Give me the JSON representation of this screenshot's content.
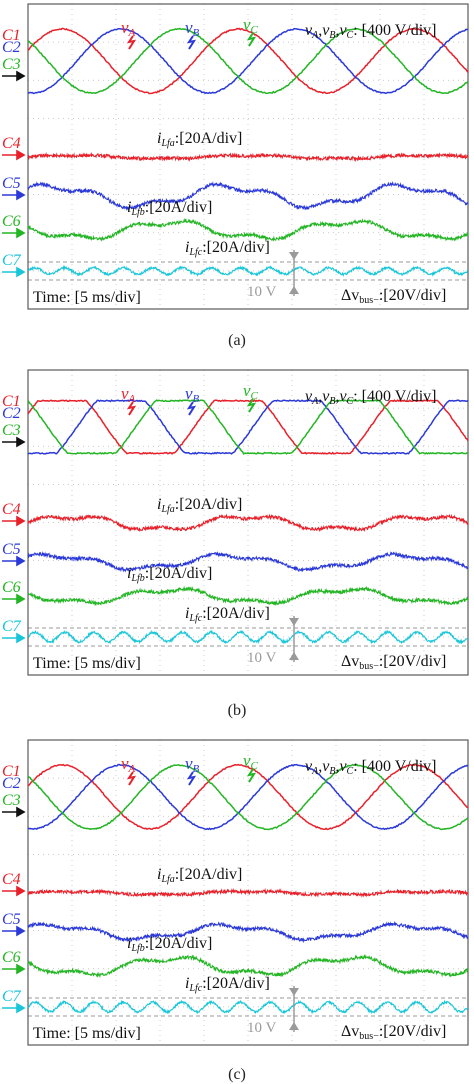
{
  "colors": {
    "C1": "#e8202a",
    "C2": "#2b39d8",
    "C3": "#23b524",
    "C4": "#e8202a",
    "C5": "#2b39d8",
    "C6": "#23b524",
    "C7": "#18c6d9",
    "annot": "#9a9a9a",
    "frame": "#5a5a5a"
  },
  "panels": [
    {
      "caption": "(a)",
      "channels": [
        "C1",
        "C2",
        "C3",
        "C4",
        "C5",
        "C6",
        "C7"
      ],
      "voltage_labels": [
        "v",
        "A",
        "v",
        "B",
        "v",
        "C"
      ],
      "voltage_scale": {
        "names": [
          "v",
          "A",
          ",",
          "v",
          "B",
          ",",
          "v",
          "C"
        ],
        "scale": ": [400 V/div]"
      },
      "current_labels": [
        {
          "sym": "i",
          "sub": "Lfa",
          "scale": ":[20A/div]"
        },
        {
          "sym": "i",
          "sub": "Lfb",
          "scale": ":[20A/div]"
        },
        {
          "sym": "i",
          "sub": "Lfc",
          "scale": ":[20A/div]"
        }
      ],
      "time_label": "Time: [5 ms/div]",
      "bus_label": {
        "pre": "Δv",
        "sub": "bus−",
        "scale": ":[20V/div]"
      },
      "v10_label": "10 V"
    },
    {
      "caption": "(b)",
      "channels": [
        "C1",
        "C2",
        "C3",
        "C4",
        "C5",
        "C6",
        "C7"
      ],
      "voltage_labels": [
        "v",
        "A",
        "v",
        "B",
        "v",
        "C"
      ],
      "voltage_scale": {
        "names": [
          "v",
          "A",
          ",",
          "v",
          "B",
          ",",
          "v",
          "C"
        ],
        "scale": ": [400 V/div]"
      },
      "current_labels": [
        {
          "sym": "i",
          "sub": "Lfa",
          "scale": ":[20A/div]"
        },
        {
          "sym": "i",
          "sub": "Lfb",
          "scale": ":[20A/div]"
        },
        {
          "sym": "i",
          "sub": "Lfc",
          "scale": ":[20A/div]"
        }
      ],
      "time_label": "Time: [5 ms/div]",
      "bus_label": {
        "pre": "Δv",
        "sub": "bus−",
        "scale": ":[20V/div]"
      },
      "v10_label": "10 V"
    },
    {
      "caption": "(c)",
      "channels": [
        "C1",
        "C2",
        "C3",
        "C4",
        "C5",
        "C6",
        "C7"
      ],
      "voltage_labels": [
        "v",
        "A",
        "v",
        "B",
        "v",
        "C"
      ],
      "voltage_scale": {
        "names": [
          "v",
          "A",
          ",",
          "v",
          "B",
          ",",
          "v",
          "C"
        ],
        "scale": ": [400 V/div]"
      },
      "current_labels": [
        {
          "sym": "i",
          "sub": "Lfa",
          "scale": ":[20A/div]"
        },
        {
          "sym": "i",
          "sub": "Lfb",
          "scale": ":[20A/div]"
        },
        {
          "sym": "i",
          "sub": "Lfc",
          "scale": ":[20A/div]"
        }
      ],
      "time_label": "Time: [5 ms/div]",
      "bus_label": {
        "pre": "Δv",
        "sub": "bus−",
        "scale": ":[20V/div]"
      },
      "v10_label": "10 V"
    }
  ],
  "chart_data": {
    "type": "line",
    "x_unit": "ms",
    "x_range": [
      0,
      50
    ],
    "time_per_div_ms": 5,
    "voltage_scale_V_per_div": 400,
    "current_scale_A_per_div": 20,
    "bus_scale_V_per_div": 20,
    "fundamental_frequency_Hz": 50,
    "panels": [
      {
        "name": "(a)",
        "phase_voltages": {
          "amplitude_div": 1.0,
          "phase_deg": {
            "vA": 0,
            "vB": -120,
            "vC": 120
          }
        },
        "filter_currents": {
          "iLfa_amplitude_div": 0.05,
          "iLfb_amplitude_div": 0.3,
          "iLfc_amplitude_div": 0.25
        },
        "bus_ripple_div": 0.1
      },
      {
        "name": "(b)",
        "phase_voltages": {
          "amplitude_div": 1.0,
          "phase_deg": {
            "vA": 0,
            "vB": -120,
            "vC": 120
          },
          "clipped": true
        },
        "filter_currents": {
          "iLfa_amplitude_div": 0.2,
          "iLfb_amplitude_div": 0.2,
          "iLfc_amplitude_div": 0.2
        },
        "bus_ripple_div": 0.15
      },
      {
        "name": "(c)",
        "phase_voltages": {
          "amplitude_div": 1.0,
          "phase_deg": {
            "vA": 0,
            "vB": -120,
            "vC": 120
          }
        },
        "filter_currents": {
          "iLfa_amplitude_div": 0.05,
          "iLfb_amplitude_div": 0.2,
          "iLfc_amplitude_div": 0.25
        },
        "bus_ripple_div": 0.15
      }
    ]
  }
}
